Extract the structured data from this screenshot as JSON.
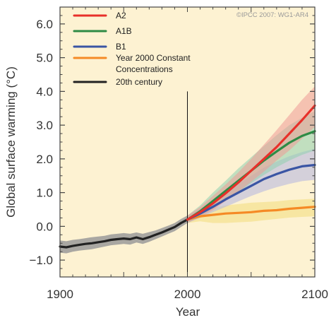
{
  "chart_data": {
    "type": "line",
    "credit": "©IPCC 2007: WG1-AR4",
    "xlabel": "Year",
    "ylabel": "Global surface warming (°C)",
    "xlim": [
      1900,
      2100
    ],
    "ylim": [
      -1.5,
      6.5
    ],
    "x_ticks": [
      1900,
      2000,
      2100
    ],
    "x_tick_labels": [
      "1900",
      "2000",
      "2100"
    ],
    "y_ticks": [
      -1,
      0,
      1,
      2,
      3,
      4,
      5,
      6
    ],
    "y_tick_labels": [
      "−1.0",
      "0.0",
      "1.0",
      "2.0",
      "3.0",
      "4.0",
      "5.0",
      "6.0"
    ],
    "background_color": "#fdf2d2",
    "grid": false,
    "reference_line_x": 2000,
    "legend_position": "top-left",
    "legend": [
      {
        "label": "A2",
        "color": "#e8302a"
      },
      {
        "label": "A1B",
        "color": "#2e8b45"
      },
      {
        "label": "B1",
        "color": "#3a55a4"
      },
      {
        "label": "Year 2000 Constant\nConcentrations",
        "color": "#f58a25"
      },
      {
        "label": "20th century",
        "color": "#222222"
      }
    ],
    "series": [
      {
        "name": "20th century",
        "color": "#222222",
        "band_color": "#9a9a9a",
        "x": [
          1900,
          1905,
          1910,
          1915,
          1920,
          1925,
          1930,
          1935,
          1940,
          1945,
          1950,
          1955,
          1960,
          1965,
          1970,
          1975,
          1980,
          1985,
          1990,
          1995,
          2000
        ],
        "y": [
          -0.6,
          -0.62,
          -0.58,
          -0.55,
          -0.52,
          -0.5,
          -0.47,
          -0.44,
          -0.4,
          -0.38,
          -0.36,
          -0.38,
          -0.33,
          -0.38,
          -0.32,
          -0.25,
          -0.18,
          -0.1,
          -0.02,
          0.1,
          0.2
        ],
        "lower": [
          -0.78,
          -0.8,
          -0.75,
          -0.72,
          -0.7,
          -0.68,
          -0.64,
          -0.6,
          -0.56,
          -0.54,
          -0.52,
          -0.54,
          -0.48,
          -0.52,
          -0.46,
          -0.38,
          -0.3,
          -0.22,
          -0.14,
          -0.02,
          0.1
        ],
        "upper": [
          -0.42,
          -0.44,
          -0.4,
          -0.38,
          -0.35,
          -0.32,
          -0.3,
          -0.28,
          -0.24,
          -0.22,
          -0.2,
          -0.22,
          -0.18,
          -0.22,
          -0.17,
          -0.12,
          -0.05,
          0.02,
          0.1,
          0.22,
          0.32
        ]
      },
      {
        "name": "A2",
        "color": "#e8302a",
        "band_color": "#ef9a96",
        "x": [
          2000,
          2010,
          2020,
          2030,
          2040,
          2050,
          2060,
          2070,
          2080,
          2090,
          2100
        ],
        "y": [
          0.2,
          0.42,
          0.68,
          0.98,
          1.3,
          1.65,
          2.0,
          2.35,
          2.75,
          3.15,
          3.58
        ],
        "lower": [
          0.1,
          0.28,
          0.48,
          0.75,
          1.02,
          1.32,
          1.62,
          1.95,
          2.25,
          2.6,
          2.95
        ],
        "upper": [
          0.32,
          0.58,
          0.9,
          1.24,
          1.6,
          2.0,
          2.42,
          2.85,
          3.3,
          3.75,
          4.15
        ]
      },
      {
        "name": "A1B",
        "color": "#2e8b45",
        "band_color": "#8fcfae",
        "x": [
          2000,
          2010,
          2020,
          2030,
          2040,
          2050,
          2060,
          2070,
          2080,
          2090,
          2100
        ],
        "y": [
          0.2,
          0.45,
          0.75,
          1.05,
          1.35,
          1.65,
          1.95,
          2.22,
          2.48,
          2.68,
          2.82
        ],
        "lower": [
          0.1,
          0.3,
          0.52,
          0.78,
          1.02,
          1.28,
          1.52,
          1.75,
          1.95,
          2.12,
          2.25
        ],
        "upper": [
          0.32,
          0.62,
          1.0,
          1.35,
          1.72,
          2.05,
          2.38,
          2.7,
          3.0,
          3.22,
          3.42
        ]
      },
      {
        "name": "B1",
        "color": "#3a55a4",
        "band_color": "#b3b5e0",
        "x": [
          2000,
          2010,
          2020,
          2030,
          2040,
          2050,
          2060,
          2070,
          2080,
          2090,
          2100
        ],
        "y": [
          0.2,
          0.38,
          0.58,
          0.8,
          1.0,
          1.2,
          1.4,
          1.55,
          1.68,
          1.78,
          1.82
        ],
        "lower": [
          0.1,
          0.25,
          0.42,
          0.58,
          0.74,
          0.9,
          1.04,
          1.16,
          1.26,
          1.34,
          1.38
        ],
        "upper": [
          0.32,
          0.52,
          0.76,
          1.02,
          1.26,
          1.5,
          1.74,
          1.92,
          2.08,
          2.2,
          2.3
        ]
      },
      {
        "name": "Year 2000 Constant Concentrations",
        "color": "#f58a25",
        "band_color": "#f2dc7a",
        "x": [
          2000,
          2010,
          2020,
          2030,
          2040,
          2050,
          2060,
          2070,
          2080,
          2090,
          2100
        ],
        "y": [
          0.2,
          0.3,
          0.34,
          0.38,
          0.4,
          0.42,
          0.46,
          0.48,
          0.52,
          0.55,
          0.58
        ],
        "lower": [
          0.1,
          0.15,
          0.1,
          0.1,
          0.12,
          0.14,
          0.18,
          0.22,
          0.26,
          0.28,
          0.3
        ],
        "upper": [
          0.32,
          0.45,
          0.55,
          0.62,
          0.66,
          0.7,
          0.72,
          0.74,
          0.78,
          0.8,
          0.82
        ]
      }
    ]
  }
}
